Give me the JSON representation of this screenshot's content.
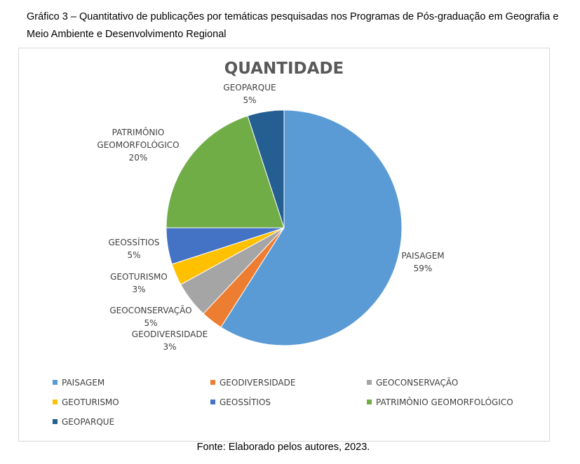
{
  "caption": "Gráfico 3 – Quantitativo de publicações por temáticas pesquisadas nos Programas de Pós-graduação em Geografia e Meio Ambiente e Desenvolvimento Regional",
  "source": "Fonte: Elaborado pelos autores, 2023.",
  "chart_data": {
    "type": "pie",
    "title": "QUANTIDADE",
    "legend_placement": "bottom",
    "slices": [
      {
        "name": "PAISAGEM",
        "value": 59,
        "label": "59%",
        "color": "#5b9bd5"
      },
      {
        "name": "GEODIVERSIDADE",
        "value": 3,
        "label": "3%",
        "color": "#ed7d31"
      },
      {
        "name": "GEOCONSERVAÇÃO",
        "value": 5,
        "label": "5%",
        "color": "#a5a5a5"
      },
      {
        "name": "GEOTURISMO",
        "value": 3,
        "label": "3%",
        "color": "#ffc000"
      },
      {
        "name": "GEOSSÍTIOS",
        "value": 5,
        "label": "5%",
        "color": "#4472c4"
      },
      {
        "name": "PATRIMÔNIO GEOMORFOLÓGICO",
        "value": 20,
        "label": "20%",
        "color": "#70ad47"
      },
      {
        "name": "GEOPARQUE",
        "value": 5,
        "label": "5%",
        "color": "#255e91"
      }
    ]
  }
}
